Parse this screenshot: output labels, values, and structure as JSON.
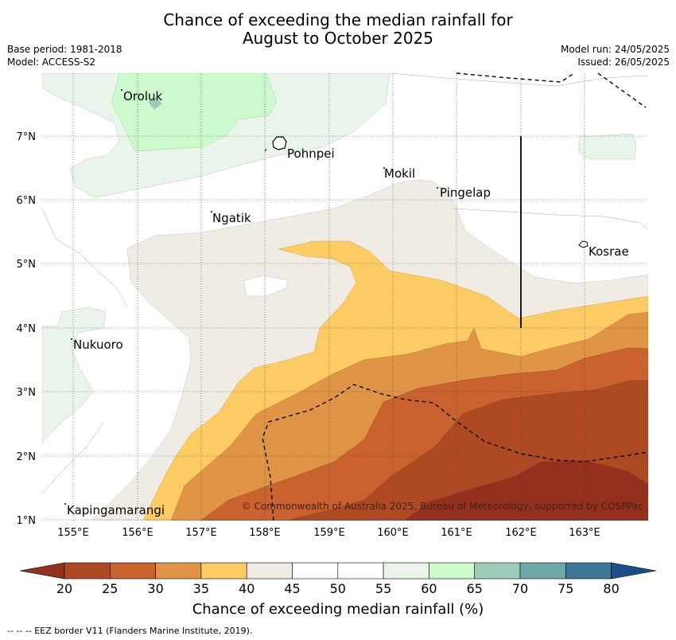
{
  "title_line1": "Chance of exceeding the median rainfall for",
  "title_line2": "August to October 2025",
  "base_period": "Base period: 1981-2018",
  "model": "Model: ACCESS-S2",
  "model_run": "Model run: 24/05/2025",
  "issued": "Issued: 26/05/2025",
  "copyright": "© Commonwealth of Australia 2025, Bureau of Meteorology, supported by COSPPac",
  "places": [
    "Oroluk",
    "Pohnpei",
    "Mokil",
    "Pingelap",
    "Ngatik",
    "Kosrae",
    "Nukuoro",
    "Kapingamarangi"
  ],
  "lon_labels": [
    "155°E",
    "156°E",
    "157°E",
    "158°E",
    "159°E",
    "160°E",
    "161°E",
    "162°E",
    "163°E"
  ],
  "lat_labels": [
    "7°N",
    "6°N",
    "5°N",
    "4°N",
    "3°N",
    "2°N",
    "1°N"
  ],
  "colorbar": {
    "ticks": [
      "20",
      "25",
      "30",
      "35",
      "40",
      "45",
      "50",
      "55",
      "60",
      "65",
      "70",
      "75",
      "80"
    ],
    "colors": [
      "#ad4a24",
      "#c9622e",
      "#e09445",
      "#fdcb63",
      "#f0ebe5",
      "#ffffff",
      "#ffffff",
      "#eaf4ea",
      "#ccfacc",
      "#9ccdb9",
      "#6fa6a6",
      "#3f7896",
      "#1a4f8c"
    ],
    "label": "Chance of exceeding median rainfall (%)"
  },
  "footer": "--  --  -- EEZ border V11 (Flanders Marine Institute, 2019)."
}
